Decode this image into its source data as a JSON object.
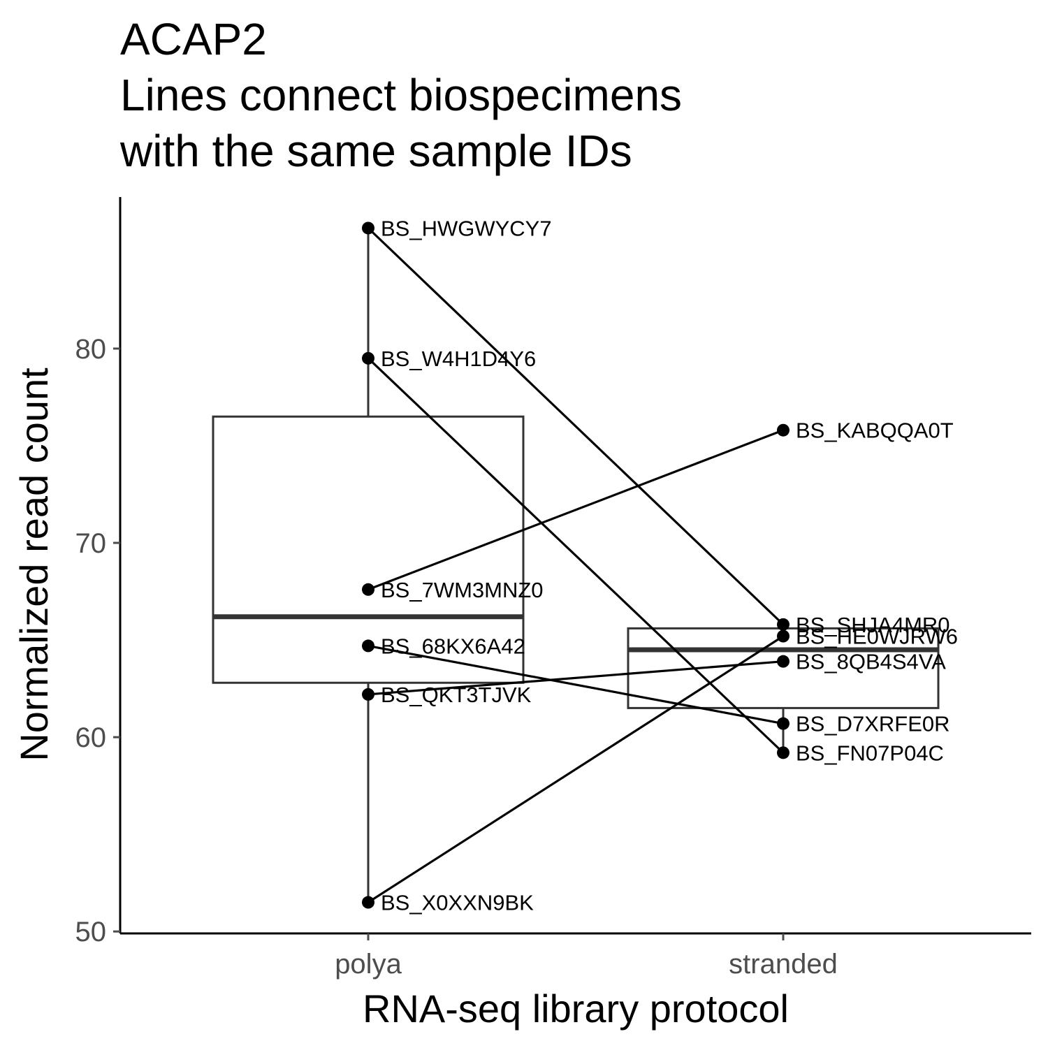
{
  "chart_data": {
    "type": "box",
    "title_lines": [
      "ACAP2",
      "Lines connect biospecimens",
      "with the same sample IDs"
    ],
    "xlabel": "RNA-seq library protocol",
    "ylabel": "Normalized read count",
    "categories": [
      "polya",
      "stranded"
    ],
    "ylim": [
      49.9,
      87.8
    ],
    "yticks": [
      50,
      60,
      70,
      80
    ],
    "grid": false,
    "legend": "none",
    "boxes": [
      {
        "category": "polya",
        "q1": 62.8,
        "median": 66.2,
        "q3": 76.5,
        "whisker_low": 51.5,
        "whisker_high": 86.2
      },
      {
        "category": "stranded",
        "q1": 61.5,
        "median": 64.5,
        "q3": 65.6,
        "whisker_low": 59.2,
        "whisker_high": 65.8
      }
    ],
    "points": [
      {
        "label": "BS_HWGWYCY7",
        "category": "polya",
        "value": 86.2
      },
      {
        "label": "BS_W4H1D4Y6",
        "category": "polya",
        "value": 79.5
      },
      {
        "label": "BS_7WM3MNZ0",
        "category": "polya",
        "value": 67.6
      },
      {
        "label": "BS_68KX6A42",
        "category": "polya",
        "value": 64.7
      },
      {
        "label": "BS_QKT3TJVK",
        "category": "polya",
        "value": 62.2
      },
      {
        "label": "BS_X0XXN9BK",
        "category": "polya",
        "value": 51.5
      },
      {
        "label": "BS_KABQQA0T",
        "category": "stranded",
        "value": 75.8
      },
      {
        "label": "BS_SHJA4MR0",
        "category": "stranded",
        "value": 65.8
      },
      {
        "label": "BS_HE0WJRW6",
        "category": "stranded",
        "value": 65.2
      },
      {
        "label": "BS_8QB4S4VA",
        "category": "stranded",
        "value": 63.9
      },
      {
        "label": "BS_D7XRFE0R",
        "category": "stranded",
        "value": 60.7
      },
      {
        "label": "BS_FN07P04C",
        "category": "stranded",
        "value": 59.2
      }
    ],
    "connections": [
      [
        86.2,
        65.8
      ],
      [
        79.5,
        59.2
      ],
      [
        67.6,
        75.8
      ],
      [
        64.7,
        60.7
      ],
      [
        62.2,
        63.9
      ],
      [
        51.5,
        65.2
      ]
    ],
    "colors": {
      "line": "#000000",
      "box": "#333333",
      "tick": "#4d4d4d"
    }
  }
}
